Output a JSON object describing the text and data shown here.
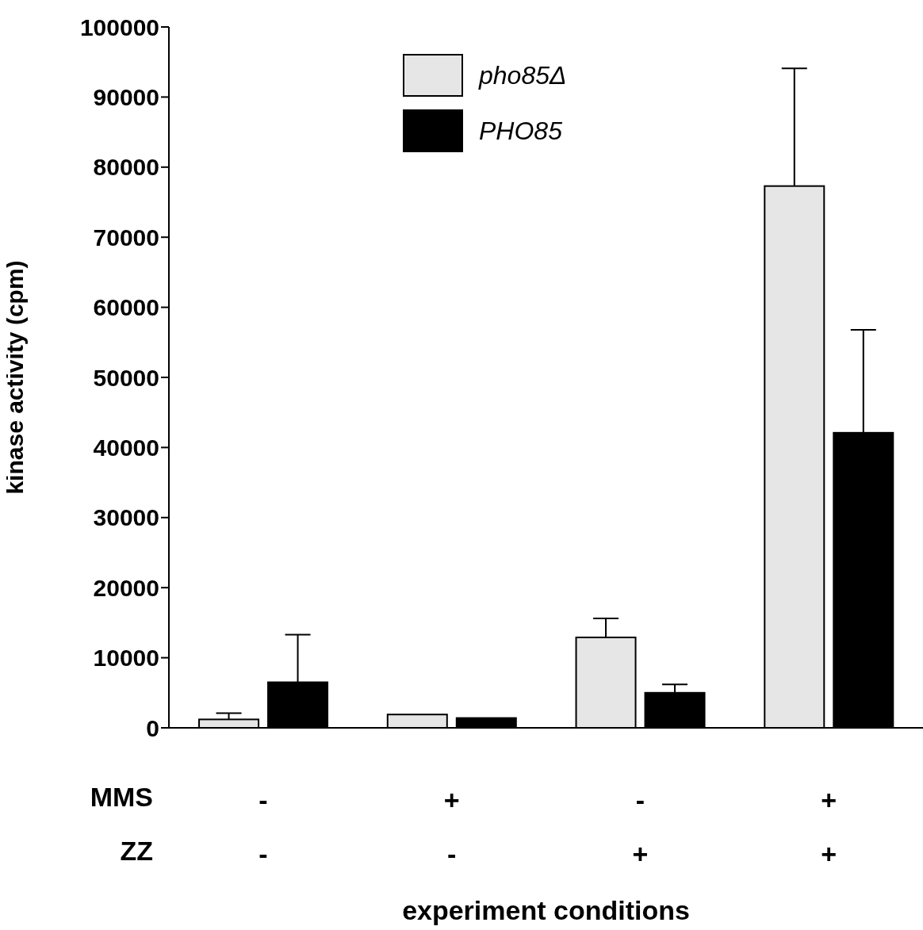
{
  "chart_data": {
    "type": "bar",
    "xlabel": "experiment conditions",
    "ylabel": "kinase activity (cpm)",
    "categories": [
      "-\n-",
      "+\n-",
      "-\n+",
      "+\n+"
    ],
    "annotations": [
      "MMS",
      "ZZ"
    ],
    "series": [
      {
        "name": "pho85Δ",
        "color": "#e6e6e6",
        "values": [
          1200,
          1900,
          12900,
          77300
        ],
        "errors": [
          [
            1200,
            2100
          ],
          null,
          [
            12900,
            15600
          ],
          [
            77300,
            94100
          ]
        ]
      },
      {
        "name": "PHO85",
        "color": "#000000",
        "values": [
          6500,
          1400,
          5000,
          42100
        ],
        "errors": [
          [
            6500,
            13300
          ],
          null,
          [
            5000,
            6200
          ],
          [
            42100,
            56800
          ]
        ]
      }
    ],
    "ylim": [
      0,
      100000
    ],
    "yticks": [
      0,
      10000,
      20000,
      30000,
      40000,
      50000,
      60000,
      70000,
      80000,
      90000,
      100000
    ],
    "grid": false,
    "legend": "top"
  }
}
